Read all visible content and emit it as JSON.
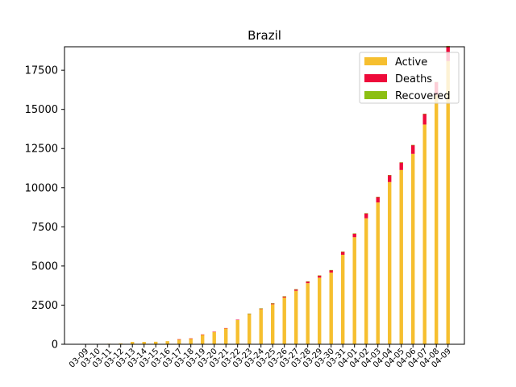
{
  "chart_data": {
    "type": "bar",
    "stacked": true,
    "title": "Brazil",
    "xlabel": "",
    "ylabel": "",
    "ylim": [
      0,
      19000
    ],
    "yticks": [
      0,
      2500,
      5000,
      7500,
      10000,
      12500,
      15000,
      17500
    ],
    "ytick_labels": [
      "0",
      "2500",
      "5000",
      "7500",
      "10000",
      "12500",
      "15000",
      "17500"
    ],
    "grid": false,
    "legend_position": "top-right",
    "categories": [
      "03-09",
      "03-10",
      "03-11",
      "03-12",
      "03-13",
      "03-14",
      "03-15",
      "03-16",
      "03-17",
      "03-18",
      "03-19",
      "03-20",
      "03-21",
      "03-22",
      "03-23",
      "03-24",
      "03-25",
      "03-26",
      "03-27",
      "03-28",
      "03-29",
      "03-30",
      "03-31",
      "04-01",
      "04-02",
      "04-03",
      "04-04",
      "04-05",
      "04-06",
      "04-07",
      "04-08",
      "04-09"
    ],
    "series": [
      {
        "name": "Active",
        "color": "#f6bf2f",
        "values": [
          25,
          25,
          34,
          52,
          151,
          151,
          162,
          200,
          321,
          372,
          621,
          793,
          1021,
          1546,
          1924,
          2247,
          2554,
          2985,
          3417,
          3904,
          4256,
          4579,
          5717,
          6836,
          8044,
          9056,
          10360,
          11130,
          12161,
          14034,
          15927,
          18092
        ]
      },
      {
        "name": "Deaths",
        "color": "#ee0a3a",
        "values": [
          0,
          0,
          0,
          0,
          0,
          0,
          0,
          0,
          1,
          3,
          6,
          11,
          15,
          25,
          34,
          46,
          59,
          77,
          92,
          111,
          136,
          159,
          201,
          240,
          324,
          359,
          445,
          486,
          564,
          686,
          819,
          950
        ]
      },
      {
        "name": "Recovered",
        "color": "#8cbf12",
        "values": [
          0,
          0,
          0,
          0,
          0,
          0,
          0,
          0,
          0,
          0,
          0,
          0,
          0,
          0,
          2,
          2,
          2,
          6,
          6,
          6,
          6,
          6,
          6,
          6,
          6,
          6,
          6,
          6,
          6,
          6,
          10,
          13
        ]
      }
    ]
  }
}
